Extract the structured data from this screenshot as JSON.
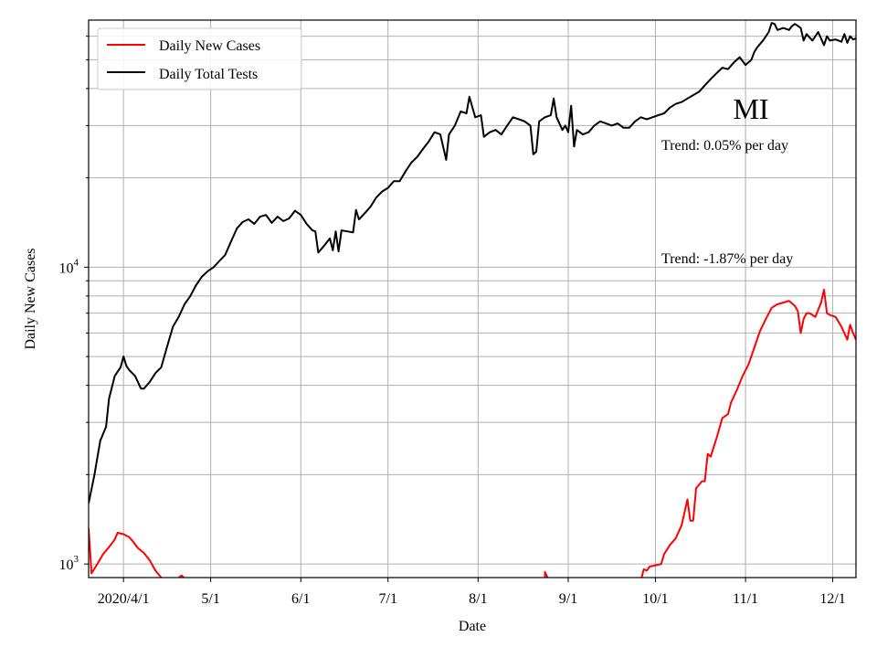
{
  "chart_data": {
    "type": "line",
    "title": "",
    "xlabel": "Date",
    "ylabel": "Daily New Cases",
    "yscale": "log",
    "ylim": [
      900,
      68000
    ],
    "x_ticks": [
      "2020/4/1",
      "5/1",
      "6/1",
      "7/1",
      "8/1",
      "9/1",
      "10/1",
      "11/1",
      "12/1"
    ],
    "y_ticks": [
      {
        "value": 1000,
        "base": "10",
        "exp": "3"
      },
      {
        "value": 10000,
        "base": "10",
        "exp": "4"
      }
    ],
    "grid": true,
    "legend_position": "top-left",
    "annotations": {
      "state": "MI",
      "trend_tests": "Trend: 0.05% per day",
      "trend_cases": "Trend: -1.87% per day"
    },
    "series": [
      {
        "name": "Daily New Cases",
        "color": "#ff0000",
        "points": [
          [
            "2020-03-20",
            1320
          ],
          [
            "2020-03-21",
            930
          ],
          [
            "2020-03-23",
            1000
          ],
          [
            "2020-03-25",
            1080
          ],
          [
            "2020-03-27",
            1140
          ],
          [
            "2020-03-29",
            1210
          ],
          [
            "2020-03-30",
            1275
          ],
          [
            "2020-04-01",
            1260
          ],
          [
            "2020-04-03",
            1230
          ],
          [
            "2020-04-04",
            1200
          ],
          [
            "2020-04-06",
            1130
          ],
          [
            "2020-04-08",
            1090
          ],
          [
            "2020-04-10",
            1030
          ],
          [
            "2020-04-12",
            950
          ],
          [
            "2020-04-14",
            900
          ],
          [
            null,
            null
          ],
          [
            "2020-04-20",
            900
          ],
          [
            "2020-04-21",
            915
          ],
          [
            "2020-04-22",
            895
          ],
          [
            null,
            null
          ],
          [
            "2020-08-24",
            895
          ],
          [
            "2020-08-24",
            940
          ],
          [
            "2020-08-25",
            895
          ],
          [
            null,
            null
          ],
          [
            "2020-09-26",
            880
          ],
          [
            "2020-09-27",
            960
          ],
          [
            "2020-09-28",
            950
          ],
          [
            "2020-09-29",
            980
          ],
          [
            "2020-10-01",
            990
          ],
          [
            "2020-10-03",
            1000
          ],
          [
            "2020-10-04",
            1080
          ],
          [
            "2020-10-06",
            1160
          ],
          [
            "2020-10-08",
            1220
          ],
          [
            "2020-10-10",
            1350
          ],
          [
            "2020-10-12",
            1650
          ],
          [
            "2020-10-13",
            1400
          ],
          [
            "2020-10-14",
            1400
          ],
          [
            "2020-10-15",
            1800
          ],
          [
            "2020-10-17",
            1900
          ],
          [
            "2020-10-18",
            1900
          ],
          [
            "2020-10-19",
            2350
          ],
          [
            "2020-10-20",
            2300
          ],
          [
            "2020-10-22",
            2650
          ],
          [
            "2020-10-24",
            3100
          ],
          [
            "2020-10-26",
            3200
          ],
          [
            "2020-10-27",
            3500
          ],
          [
            "2020-10-29",
            3850
          ],
          [
            "2020-10-31",
            4300
          ],
          [
            "2020-11-02",
            4700
          ],
          [
            "2020-11-04",
            5350
          ],
          [
            "2020-11-06",
            6100
          ],
          [
            "2020-11-08",
            6700
          ],
          [
            "2020-11-10",
            7300
          ],
          [
            "2020-11-12",
            7500
          ],
          [
            "2020-11-14",
            7600
          ],
          [
            "2020-11-16",
            7700
          ],
          [
            "2020-11-18",
            7400
          ],
          [
            "2020-11-19",
            7100
          ],
          [
            "2020-11-20",
            6000
          ],
          [
            "2020-11-21",
            6700
          ],
          [
            "2020-11-22",
            7000
          ],
          [
            "2020-11-23",
            7000
          ],
          [
            "2020-11-25",
            6800
          ],
          [
            "2020-11-27",
            7600
          ],
          [
            "2020-11-28",
            8400
          ],
          [
            "2020-11-29",
            7000
          ],
          [
            "2020-11-30",
            6900
          ],
          [
            "2020-12-02",
            6800
          ],
          [
            "2020-12-04",
            6300
          ],
          [
            "2020-12-06",
            5700
          ],
          [
            "2020-12-07",
            6400
          ],
          [
            "2020-12-08",
            6000
          ],
          [
            "2020-12-09",
            5700
          ]
        ]
      },
      {
        "name": "Daily Total Tests",
        "color": "#000000",
        "points": [
          [
            "2020-03-20",
            1600
          ],
          [
            "2020-03-22",
            2000
          ],
          [
            "2020-03-24",
            2600
          ],
          [
            "2020-03-26",
            2900
          ],
          [
            "2020-03-27",
            3600
          ],
          [
            "2020-03-29",
            4300
          ],
          [
            "2020-03-31",
            4600
          ],
          [
            "2020-04-01",
            5000
          ],
          [
            "2020-04-02",
            4650
          ],
          [
            "2020-04-03",
            4500
          ],
          [
            "2020-04-05",
            4300
          ],
          [
            "2020-04-07",
            3900
          ],
          [
            "2020-04-08",
            3900
          ],
          [
            "2020-04-10",
            4100
          ],
          [
            "2020-04-12",
            4400
          ],
          [
            "2020-04-14",
            4600
          ],
          [
            "2020-04-16",
            5400
          ],
          [
            "2020-04-18",
            6300
          ],
          [
            "2020-04-20",
            6800
          ],
          [
            "2020-04-22",
            7500
          ],
          [
            "2020-04-24",
            8000
          ],
          [
            "2020-04-26",
            8700
          ],
          [
            "2020-04-28",
            9300
          ],
          [
            "2020-04-30",
            9700
          ],
          [
            "2020-05-02",
            10000
          ],
          [
            "2020-05-04",
            10500
          ],
          [
            "2020-05-06",
            11000
          ],
          [
            "2020-05-08",
            12200
          ],
          [
            "2020-05-10",
            13500
          ],
          [
            "2020-05-12",
            14200
          ],
          [
            "2020-05-14",
            14500
          ],
          [
            "2020-05-16",
            14000
          ],
          [
            "2020-05-18",
            14800
          ],
          [
            "2020-05-20",
            15000
          ],
          [
            "2020-05-22",
            14100
          ],
          [
            "2020-05-24",
            14800
          ],
          [
            "2020-05-26",
            14300
          ],
          [
            "2020-05-28",
            14600
          ],
          [
            "2020-05-30",
            15500
          ],
          [
            "2020-06-01",
            15000
          ],
          [
            "2020-06-03",
            14000
          ],
          [
            "2020-06-05",
            13300
          ],
          [
            "2020-06-06",
            13200
          ],
          [
            "2020-06-07",
            11200
          ],
          [
            "2020-06-09",
            11800
          ],
          [
            "2020-06-11",
            12500
          ],
          [
            "2020-06-12",
            11400
          ],
          [
            "2020-06-13",
            13200
          ],
          [
            "2020-06-14",
            11300
          ],
          [
            "2020-06-15",
            13300
          ],
          [
            "2020-06-17",
            13200
          ],
          [
            "2020-06-19",
            13100
          ],
          [
            "2020-06-20",
            15600
          ],
          [
            "2020-06-21",
            14500
          ],
          [
            "2020-06-23",
            15200
          ],
          [
            "2020-06-25",
            16000
          ],
          [
            "2020-06-27",
            17200
          ],
          [
            "2020-06-29",
            18000
          ],
          [
            "2020-07-01",
            18500
          ],
          [
            "2020-07-03",
            19500
          ],
          [
            "2020-07-05",
            19500
          ],
          [
            "2020-07-07",
            21000
          ],
          [
            "2020-07-09",
            22500
          ],
          [
            "2020-07-11",
            23500
          ],
          [
            "2020-07-13",
            25000
          ],
          [
            "2020-07-15",
            26500
          ],
          [
            "2020-07-17",
            28500
          ],
          [
            "2020-07-19",
            28000
          ],
          [
            "2020-07-21",
            23000
          ],
          [
            "2020-07-22",
            28000
          ],
          [
            "2020-07-24",
            30000
          ],
          [
            "2020-07-26",
            33500
          ],
          [
            "2020-07-28",
            33000
          ],
          [
            "2020-07-29",
            37500
          ],
          [
            "2020-07-31",
            32000
          ],
          [
            "2020-08-02",
            32500
          ],
          [
            "2020-08-03",
            27500
          ],
          [
            "2020-08-05",
            28500
          ],
          [
            "2020-08-07",
            29000
          ],
          [
            "2020-08-09",
            28000
          ],
          [
            "2020-08-11",
            30000
          ],
          [
            "2020-08-13",
            32000
          ],
          [
            "2020-08-15",
            31500
          ],
          [
            "2020-08-17",
            31000
          ],
          [
            "2020-08-19",
            30000
          ],
          [
            "2020-08-20",
            24000
          ],
          [
            "2020-08-21",
            24500
          ],
          [
            "2020-08-22",
            31000
          ],
          [
            "2020-08-24",
            32000
          ],
          [
            "2020-08-26",
            32500
          ],
          [
            "2020-08-27",
            37000
          ],
          [
            "2020-08-28",
            32000
          ],
          [
            "2020-08-30",
            29000
          ],
          [
            "2020-08-31",
            30000
          ],
          [
            "2020-09-01",
            28500
          ],
          [
            "2020-09-02",
            35000
          ],
          [
            "2020-09-03",
            25500
          ],
          [
            "2020-09-04",
            29000
          ],
          [
            "2020-09-06",
            28000
          ],
          [
            "2020-09-08",
            28500
          ],
          [
            "2020-09-10",
            30000
          ],
          [
            "2020-09-12",
            31000
          ],
          [
            "2020-09-14",
            30500
          ],
          [
            "2020-09-16",
            30000
          ],
          [
            "2020-09-18",
            30500
          ],
          [
            "2020-09-20",
            29500
          ],
          [
            "2020-09-22",
            29500
          ],
          [
            "2020-09-24",
            31000
          ],
          [
            "2020-09-26",
            32000
          ],
          [
            "2020-09-28",
            31500
          ],
          [
            "2020-09-30",
            32000
          ],
          [
            "2020-10-02",
            32500
          ],
          [
            "2020-10-04",
            33000
          ],
          [
            "2020-10-06",
            34500
          ],
          [
            "2020-10-08",
            35500
          ],
          [
            "2020-10-10",
            36000
          ],
          [
            "2020-10-12",
            37000
          ],
          [
            "2020-10-14",
            38000
          ],
          [
            "2020-10-16",
            39000
          ],
          [
            "2020-10-18",
            41000
          ],
          [
            "2020-10-20",
            43000
          ],
          [
            "2020-10-22",
            45000
          ],
          [
            "2020-10-24",
            47000
          ],
          [
            "2020-10-26",
            46500
          ],
          [
            "2020-10-28",
            49000
          ],
          [
            "2020-10-30",
            51000
          ],
          [
            "2020-11-01",
            48000
          ],
          [
            "2020-11-03",
            50000
          ],
          [
            "2020-11-04",
            53000
          ],
          [
            "2020-11-05",
            55000
          ],
          [
            "2020-11-07",
            58000
          ],
          [
            "2020-11-09",
            62000
          ],
          [
            "2020-11-10",
            66500
          ],
          [
            "2020-11-11",
            66000
          ],
          [
            "2020-11-12",
            63000
          ],
          [
            "2020-11-14",
            64000
          ],
          [
            "2020-11-16",
            63000
          ],
          [
            "2020-11-17",
            65000
          ],
          [
            "2020-11-18",
            66000
          ],
          [
            "2020-11-20",
            64000
          ],
          [
            "2020-11-21",
            58000
          ],
          [
            "2020-11-22",
            61000
          ],
          [
            "2020-11-24",
            58000
          ],
          [
            "2020-11-26",
            62000
          ],
          [
            "2020-11-28",
            56000
          ],
          [
            "2020-11-29",
            60000
          ],
          [
            "2020-11-30",
            58000
          ],
          [
            "2020-12-02",
            58500
          ],
          [
            "2020-12-04",
            57500
          ],
          [
            "2020-12-05",
            61000
          ],
          [
            "2020-12-06",
            57000
          ],
          [
            "2020-12-07",
            60000
          ],
          [
            "2020-12-08",
            58500
          ],
          [
            "2020-12-09",
            59000
          ]
        ]
      }
    ]
  }
}
